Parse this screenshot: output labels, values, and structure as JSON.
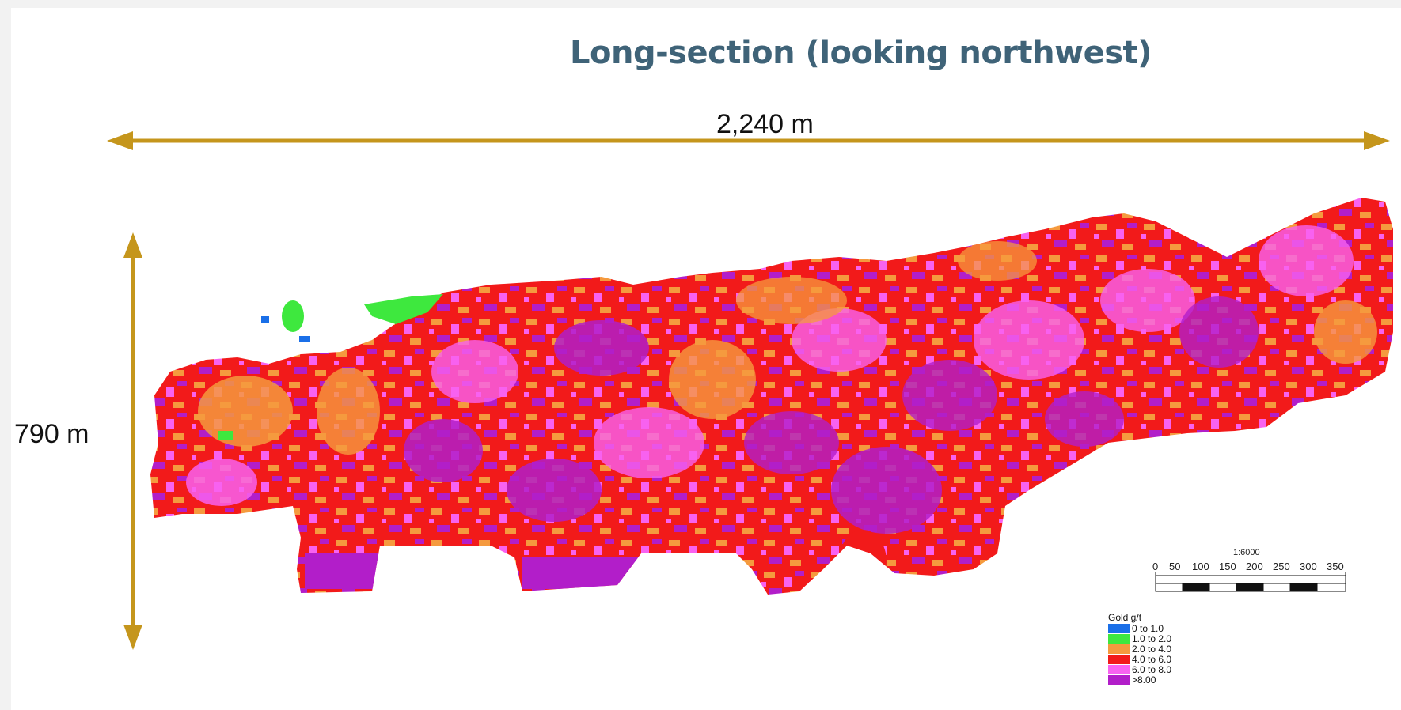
{
  "title": "Long-section (looking northwest)",
  "dimensions": {
    "width_label": "2,240 m",
    "height_label": "790 m",
    "arrow_color": "#c5961c"
  },
  "scale_bar": {
    "ratio": "1:6000",
    "ticks": [
      "0",
      "50",
      "100",
      "150",
      "200",
      "250",
      "300",
      "350"
    ]
  },
  "legend": {
    "title": "Gold g/t",
    "items": [
      {
        "label": "0 to 1.0",
        "color": "#1a6fe8"
      },
      {
        "label": "1.0 to 2.0",
        "color": "#3ee83e"
      },
      {
        "label": "2.0 to 4.0",
        "color": "#f59a3e"
      },
      {
        "label": "4.0 to 6.0",
        "color": "#f21a1a"
      },
      {
        "label": "6.0 to 8.0",
        "color": "#f862f0"
      },
      {
        "label": ">8.00",
        "color": "#b21ec9"
      }
    ]
  }
}
